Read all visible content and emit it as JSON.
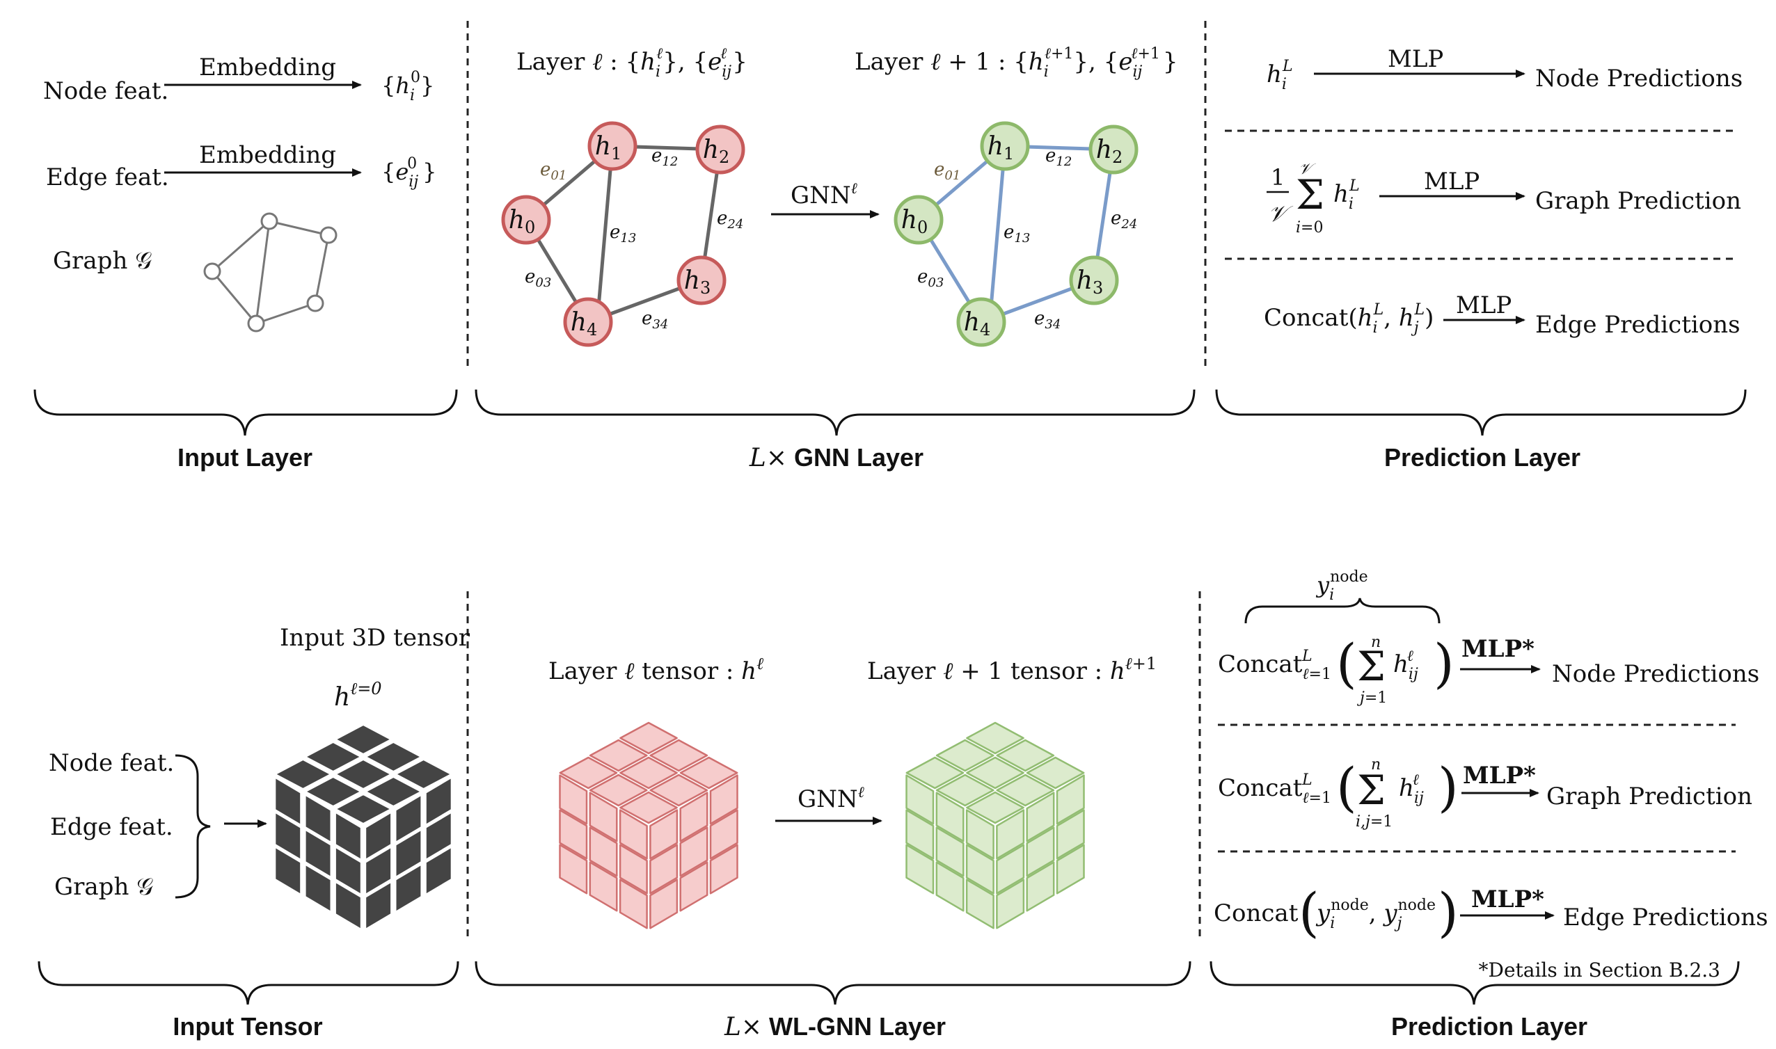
{
  "colors": {
    "node_red_fill": "#f2c4c4",
    "node_red_stroke": "#c65a5a",
    "node_green_fill": "#d4e6c3",
    "node_green_stroke": "#8db96a",
    "edge_gray": "#666666",
    "edge_blue": "#7a9bc9",
    "cube_dark": "#444444",
    "cube_red_fill": "#f6cccc",
    "cube_red_stroke": "#d07070",
    "cube_green_fill": "#dcebcd",
    "cube_green_stroke": "#92bd72"
  },
  "top": {
    "input": {
      "node_feat": "Node feat.",
      "edge_feat": "Edge feat.",
      "graph": "Graph 𝒢",
      "embedding": "Embedding",
      "node_set": "{h_i^0}",
      "edge_set": "{e_ij^0}",
      "section_label": "Input Layer"
    },
    "gnn": {
      "layer_l": "Layer ℓ : {h_i^ℓ}, {e_ij^ℓ}",
      "layer_l1": "Layer ℓ + 1 : {h_i^(ℓ+1)}, {e_ij^(ℓ+1)}",
      "gnn_arrow": "GNN^ℓ",
      "nodes": [
        "h0",
        "h1",
        "h2",
        "h3",
        "h4"
      ],
      "edges": [
        "e01",
        "e12",
        "e13",
        "e24",
        "e03",
        "e34"
      ],
      "section_label_prefix": "L×",
      "section_label": "GNN Layer"
    },
    "prediction": {
      "node_input": "h_i^L",
      "mlp": "MLP",
      "node_pred": "Node Predictions",
      "graph_input": "1/𝒱 Σ_{i=0}^{𝒱} h_i^L",
      "graph_pred": "Graph Prediction",
      "edge_input": "Concat(h_i^L, h_j^L)",
      "edge_pred": "Edge Predictions",
      "section_label": "Prediction Layer"
    }
  },
  "bottom": {
    "input": {
      "tensor_title": "Input 3D tensor",
      "tensor_symbol": "h^(ℓ=0)",
      "node_feat": "Node feat.",
      "edge_feat": "Edge feat.",
      "graph": "Graph 𝒢",
      "section_label": "Input Tensor"
    },
    "wl": {
      "layer_l": "Layer ℓ tensor : h^ℓ",
      "layer_l1": "Layer ℓ + 1 tensor : h^(ℓ+1)",
      "gnn_arrow": "GNN^ℓ",
      "section_label_prefix": "L×",
      "section_label": "WL-GNN Layer"
    },
    "prediction": {
      "y_node": "y_i^node",
      "concat": "Concat",
      "mlp_star": "MLP*",
      "node_pred": "Node Predictions",
      "graph_pred": "Graph Prediction",
      "edge_pred": "Edge Predictions",
      "footnote": "*Details in Section B.2.3",
      "section_label": "Prediction Layer"
    }
  }
}
